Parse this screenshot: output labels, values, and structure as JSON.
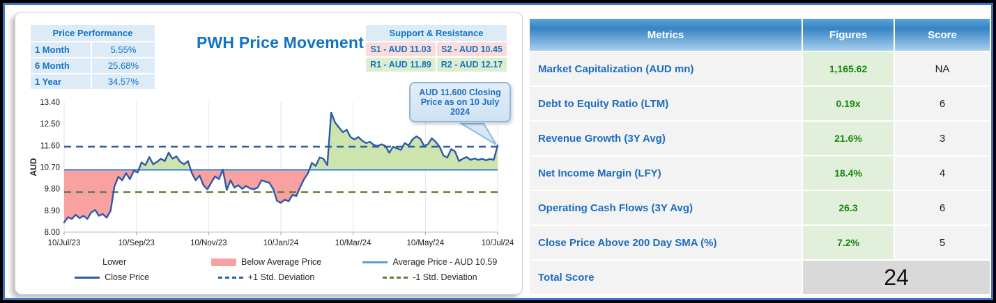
{
  "colors": {
    "accent_blue": "#1272c4",
    "figure_green": "#13860f",
    "close_line": "#2e59a8",
    "average_line": "#5b9bd5",
    "plus_std_line": "#2e5da6",
    "minus_std_line": "#548235"
  },
  "left_panel": {
    "title": "PWH Price Movement",
    "price_performance": {
      "title": "Price Performance",
      "rows": [
        {
          "label": "1 Month",
          "value": "5.55%"
        },
        {
          "label": "6 Month",
          "value": "25.68%"
        },
        {
          "label": "1 Year",
          "value": "34.57%"
        }
      ]
    },
    "support_resistance": {
      "title": "Support & Resistance",
      "s1": "S1 - AUD 11.03",
      "s2": "S2 - AUD 10.45",
      "r1": "R1 - AUD 11.89",
      "r2": "R2 - AUD 12.17"
    },
    "callout": "AUD 11.600 Closing Price as on  10 July 2024"
  },
  "chart_data": {
    "type": "line",
    "title": "PWH Price Movement",
    "xlabel": "",
    "ylabel": "AUD",
    "ylim": [
      8.0,
      13.4
    ],
    "yticks": [
      8.0,
      8.9,
      9.8,
      10.7,
      11.6,
      12.5,
      13.4
    ],
    "xticklabels": [
      "10/Jul/23",
      "10/Sep/23",
      "10/Nov/23",
      "10/Jan/24",
      "10/Mar/24",
      "10/May/24",
      "10/Jul/24"
    ],
    "grid": "vertical-light",
    "legend_position": "bottom",
    "levels": {
      "average_price": 10.59,
      "plus1_std": 11.55,
      "minus1_std": 9.66
    },
    "fills": {
      "above_average": "#cde4ad",
      "below_average": "#f9a0a0"
    },
    "series": [
      {
        "name": "Close Price",
        "closing_value": 11.6,
        "values": [
          8.4,
          8.62,
          8.55,
          8.72,
          8.58,
          8.68,
          8.55,
          8.82,
          8.92,
          8.68,
          8.75,
          8.6,
          8.88,
          9.9,
          10.3,
          10.15,
          10.45,
          10.2,
          10.55,
          10.48,
          10.9,
          10.78,
          11.12,
          10.82,
          10.92,
          11.05,
          10.95,
          11.3,
          11.05,
          11.15,
          10.92,
          10.82,
          10.95,
          10.45,
          10.15,
          10.35,
          9.95,
          9.78,
          10.05,
          10.32,
          10.2,
          10.6,
          9.75,
          10.15,
          9.85,
          9.95,
          9.8,
          9.92,
          9.82,
          9.78,
          9.85,
          10.15,
          10.1,
          10.05,
          9.8,
          9.3,
          9.22,
          9.35,
          9.28,
          9.55,
          9.5,
          9.88,
          10.2,
          10.45,
          10.88,
          10.75,
          11.1,
          11.05,
          10.78,
          12.97,
          12.55,
          12.35,
          12.15,
          12.25,
          11.95,
          11.85,
          11.95,
          11.8,
          11.7,
          11.75,
          11.62,
          11.58,
          11.65,
          11.58,
          11.3,
          11.55,
          11.48,
          11.42,
          11.7,
          11.6,
          11.85,
          11.98,
          11.88,
          11.58,
          11.65,
          11.9,
          11.75,
          11.55,
          11.18,
          11.1,
          11.45,
          11.35,
          10.95,
          11.05,
          11.12,
          11.0,
          11.06,
          11.0,
          11.05,
          10.98,
          11.04,
          11.0,
          11.6
        ]
      }
    ],
    "legend": [
      {
        "label": "Lower",
        "swatch": "none"
      },
      {
        "label": "Below Average Price",
        "swatch": "pink-rect"
      },
      {
        "label": "Average Price - AUD 10.59",
        "swatch": "blue-line"
      },
      {
        "label": "Close Price",
        "swatch": "darkblue-line"
      },
      {
        "label": "+1 Std. Deviation",
        "swatch": "blue-dashed"
      },
      {
        "label": "-1 Std. Deviation",
        "swatch": "green-dashed"
      }
    ]
  },
  "right_table": {
    "headers": [
      "Metrics",
      "Figures",
      "Score"
    ],
    "rows": [
      {
        "metric": "Market Capitalization (AUD mn)",
        "figure": "1,165.62",
        "score": "NA"
      },
      {
        "metric": "Debt to Equity Ratio (LTM)",
        "figure": "0.19x",
        "score": "6"
      },
      {
        "metric": "Revenue Growth (3Y Avg)",
        "figure": "21.6%",
        "score": "3"
      },
      {
        "metric": "Net Income Margin (LFY)",
        "figure": "18.4%",
        "score": "4"
      },
      {
        "metric": "Operating Cash Flows (3Y Avg)",
        "figure": "26.3",
        "score": "6"
      },
      {
        "metric": "Close Price Above 200 Day SMA (%)",
        "figure": "7.2%",
        "score": "5"
      }
    ],
    "total": {
      "label": "Total Score",
      "value": "24"
    }
  }
}
